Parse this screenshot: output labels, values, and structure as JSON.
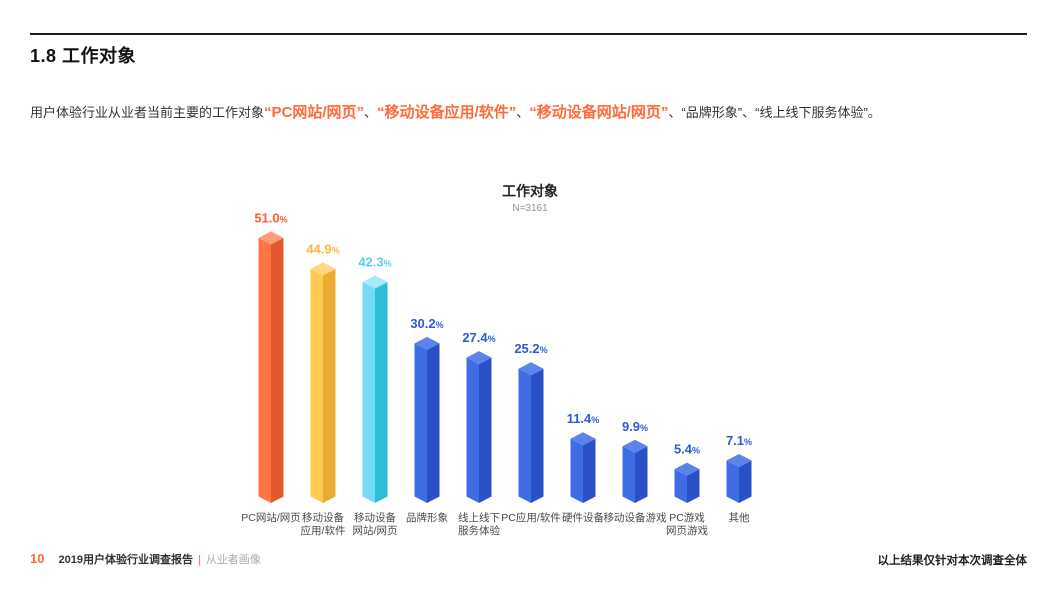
{
  "header": {
    "section_title": "1.8 工作对象"
  },
  "intro": {
    "prefix": "用户体验行业从业者当前主要的工作对象",
    "highlight1": "“PC网站/网页”",
    "sep1": "、",
    "highlight2": "“移动设备应用/软件”",
    "sep2": "、",
    "highlight3": "“移动设备网站/网页”",
    "sep3": "、",
    "plain1": "“品牌形象”",
    "sep4": "、",
    "plain2": "“线上线下服务体验”",
    "period": "。"
  },
  "chart_data": {
    "type": "bar",
    "bar_style": "isometric-3d-column",
    "title": "工作对象",
    "sample_label": "N=3161",
    "unit": "%",
    "grid": false,
    "legend": "none",
    "ylim": [
      0,
      55
    ],
    "categories": [
      "PC网站/网页",
      "移动设备\n应用/软件",
      "移动设备\n网站/网页",
      "品牌形象",
      "线上线下\n服务体验",
      "PC应用/软件",
      "硬件设备",
      "移动设备游戏",
      "PC游戏\n网页游戏",
      "其他"
    ],
    "values": [
      51.0,
      44.9,
      42.3,
      30.2,
      27.4,
      25.2,
      11.4,
      9.9,
      5.4,
      7.1
    ],
    "value_labels": [
      "51.0",
      "44.9",
      "42.3",
      "30.2",
      "27.4",
      "25.2",
      "11.4",
      "9.9",
      "5.4",
      "7.1"
    ],
    "bar_colors": [
      {
        "left": "#FF7546",
        "right": "#E5582C",
        "top": "#FF9B78",
        "label": "#FB5A35"
      },
      {
        "left": "#FFC84E",
        "right": "#E9AC32",
        "top": "#FFD87E",
        "label": "#FDB63F"
      },
      {
        "left": "#74DBF7",
        "right": "#2CBDD9",
        "top": "#A8E9FA",
        "label": "#55CEF0"
      },
      {
        "left": "#3D6CE3",
        "right": "#2A50C8",
        "top": "#5B84EA",
        "label": "#2B5BD7"
      },
      {
        "left": "#3D6CE3",
        "right": "#2A50C8",
        "top": "#5B84EA",
        "label": "#2B5BD7"
      },
      {
        "left": "#3D6CE3",
        "right": "#2A50C8",
        "top": "#5B84EA",
        "label": "#2B5BD7"
      },
      {
        "left": "#3D6CE3",
        "right": "#2A50C8",
        "top": "#5B84EA",
        "label": "#2B5BD7"
      },
      {
        "left": "#3D6CE3",
        "right": "#2A50C8",
        "top": "#5B84EA",
        "label": "#2B5BD7"
      },
      {
        "left": "#3D6CE3",
        "right": "#2A50C8",
        "top": "#5B84EA",
        "label": "#2B5BD7"
      },
      {
        "left": "#3D6CE3",
        "right": "#2A50C8",
        "top": "#5B84EA",
        "label": "#2B5BD7"
      }
    ],
    "category_label_color": "#4a4a4a"
  },
  "footer": {
    "page_number": "10",
    "report_title": "2019用户体验行业调查报告",
    "separator": "|",
    "section_name": "从业者画像",
    "note": "以上结果仅针对本次调查全体"
  }
}
